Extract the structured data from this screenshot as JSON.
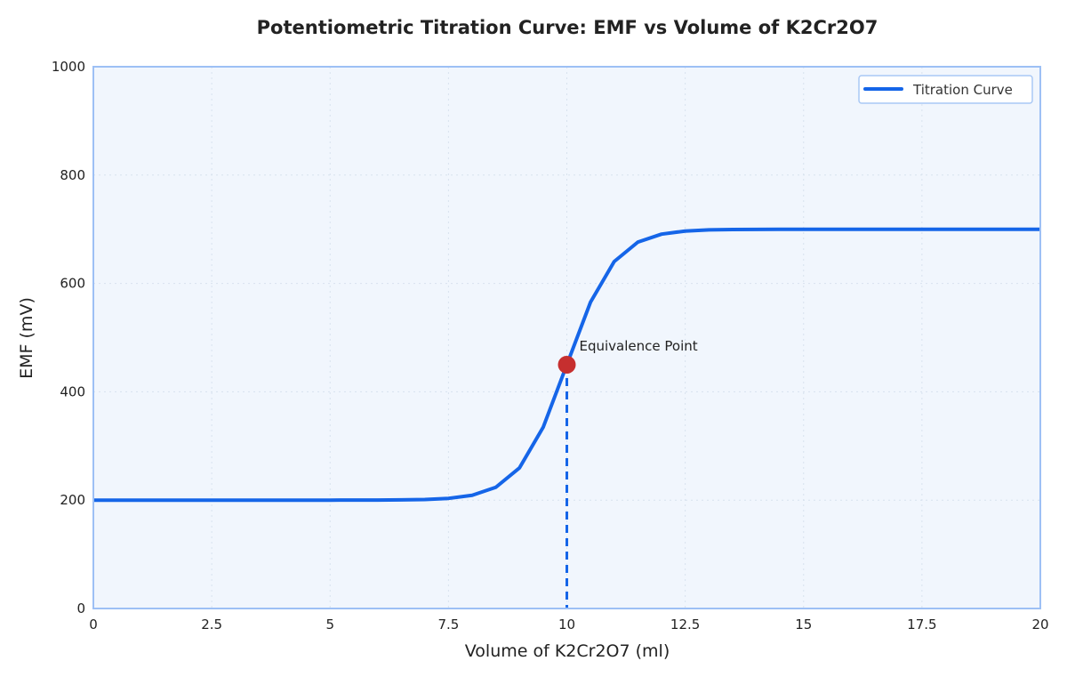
{
  "chart_data": {
    "type": "line",
    "title": "Potentiometric Titration Curve: EMF vs Volume of K2Cr2O7",
    "xlabel": "Volume of K2Cr2O7 (ml)",
    "ylabel": "EMF (mV)",
    "xlim": [
      0,
      20
    ],
    "ylim": [
      0,
      1000
    ],
    "xticks": [
      0,
      2.5,
      5,
      7.5,
      10,
      12.5,
      15,
      17.5,
      20
    ],
    "xtick_labels": [
      "0",
      "2.5",
      "5",
      "7.5",
      "10",
      "12.5",
      "15",
      "17.5",
      "20"
    ],
    "yticks": [
      0,
      200,
      400,
      600,
      800,
      1000
    ],
    "ytick_labels": [
      "0",
      "200",
      "400",
      "600",
      "800",
      "1000"
    ],
    "grid": true,
    "legend_placement": "top-right",
    "series": [
      {
        "name": "Titration Curve",
        "color": "#1565e8",
        "x": [
          0,
          0.5,
          1,
          1.5,
          2,
          2.5,
          3,
          3.5,
          4,
          4.5,
          5,
          5.5,
          6,
          6.5,
          7,
          7.5,
          8,
          8.5,
          9,
          9.5,
          10,
          10.5,
          11,
          11.5,
          12,
          12.5,
          13,
          13.5,
          14,
          14.5,
          15,
          15.5,
          16,
          16.5,
          17,
          17.5,
          18,
          18.5,
          19,
          19.5,
          20
        ],
        "y": [
          200,
          200,
          200,
          200,
          200,
          200,
          200,
          200,
          200,
          200,
          200,
          200.1,
          200.2,
          200.5,
          201.2,
          203.3,
          209,
          223.7,
          259.6,
          334.5,
          450,
          565.5,
          640.4,
          676.3,
          691,
          696.7,
          698.8,
          699.5,
          699.8,
          700,
          700,
          700,
          700,
          700,
          700,
          700,
          700,
          700,
          700,
          700,
          700
        ]
      }
    ],
    "annotations": [
      {
        "text": "Equivalence Point",
        "x": 10,
        "y": 450,
        "marker_color": "#c62f2f",
        "dropline": "dashed vertical to x-axis"
      }
    ],
    "colors": {
      "plot_background": "#f1f6fd",
      "axes_border": "#9dc0f5"
    }
  }
}
